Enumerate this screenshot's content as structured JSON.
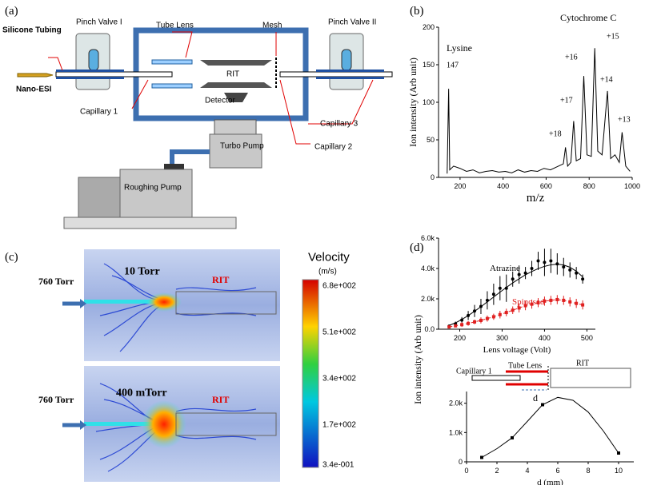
{
  "diagram_a": {
    "panel": "(a)",
    "labels": [
      "Silicone Tubing",
      "Nano-ESI",
      "Pinch Valve I",
      "Tube Lens",
      "Mesh",
      "Pinch Valve II",
      "RIT",
      "Detector",
      "Capillary 1",
      "Capillary 3",
      "Capillary 2",
      "Turbo Pump",
      "Roughing Pump"
    ]
  },
  "panel_b": {
    "panel": "(b)",
    "compound_labels": [
      "Lysine",
      "Cytochrome C"
    ],
    "peak_labels": [
      "147",
      "+18",
      "+17",
      "+16",
      "+15",
      "+14",
      "+13"
    ]
  },
  "panel_c": {
    "panel": "(c)",
    "pressure_in": [
      "760 Torr",
      "760 Torr"
    ],
    "pressure_chamber": [
      "10 Torr",
      "400 mTorr"
    ],
    "trap": [
      "RIT",
      "RIT"
    ],
    "colorbar_title": "Velocity",
    "colorbar_unit": "(m/s)",
    "colorbar_labels": [
      "6.8e+002",
      "5.1e+002",
      "3.4e+002",
      "1.7e+002",
      "3.4e-001"
    ]
  },
  "panel_d": {
    "panel": "(d)",
    "ylabel": "Ion intensity (Arb unit)",
    "inset_labels": [
      "Capillary 1",
      "Tube Lens",
      "RIT",
      "d"
    ]
  },
  "chart_data": [
    {
      "type": "line",
      "xlabel": "m/z",
      "ylabel": "Ion intensity (Arb unit)",
      "x": [
        140,
        147,
        152,
        170,
        200,
        230,
        260,
        290,
        320,
        350,
        380,
        410,
        440,
        470,
        500,
        530,
        560,
        590,
        620,
        650,
        680,
        690,
        700,
        715,
        728,
        740,
        760,
        775,
        790,
        810,
        826,
        840,
        860,
        885,
        900,
        920,
        940,
        953,
        970,
        990
      ],
      "values": [
        5,
        118,
        10,
        15,
        12,
        8,
        10,
        6,
        8,
        9,
        7,
        8,
        6,
        10,
        7,
        9,
        8,
        12,
        10,
        14,
        18,
        40,
        15,
        20,
        75,
        22,
        25,
        135,
        30,
        28,
        172,
        35,
        30,
        115,
        25,
        30,
        20,
        60,
        15,
        8
      ],
      "color": "#000000",
      "xlim": [
        100,
        1000
      ],
      "xticks": [
        200,
        400,
        600,
        800,
        1000
      ],
      "ylim": [
        0,
        200
      ],
      "yticks": [
        0,
        50,
        100,
        150,
        200
      ]
    },
    {
      "type": "scatter",
      "xlabel": "Lens voltage (Volt)",
      "xlim": [
        150,
        520
      ],
      "xticks": [
        200,
        300,
        400,
        500
      ],
      "ylim": [
        0,
        6000
      ],
      "yticks": [
        {
          "value": 0,
          "label": "0.0"
        },
        {
          "value": 2000,
          "label": "2.0k"
        },
        {
          "value": 4000,
          "label": "4.0k"
        },
        {
          "value": 6000,
          "label": "6.0k"
        }
      ],
      "x": [
        175,
        190,
        205,
        220,
        235,
        250,
        265,
        280,
        295,
        310,
        325,
        340,
        355,
        370,
        385,
        400,
        415,
        430,
        445,
        460,
        475,
        490
      ],
      "series": [
        {
          "name": "Atrazine",
          "color": "#000000",
          "marker": "circle",
          "values": [
            200,
            350,
            600,
            900,
            1200,
            1500,
            1900,
            2300,
            2700,
            2700,
            3300,
            3600,
            3700,
            4000,
            4500,
            4400,
            4500,
            4300,
            4100,
            3900,
            3700,
            3300
          ],
          "errors": [
            100,
            150,
            200,
            300,
            400,
            500,
            600,
            700,
            800,
            900,
            500,
            600,
            400,
            500,
            600,
            900,
            800,
            700,
            600,
            500,
            400,
            300
          ],
          "fit": [
            250,
            420,
            640,
            900,
            1180,
            1480,
            1800,
            2120,
            2440,
            2750,
            3050,
            3320,
            3580,
            3800,
            3990,
            4140,
            4240,
            4280,
            4230,
            4080,
            3820,
            3450
          ]
        },
        {
          "name": "Spinosad",
          "color": "#e02020",
          "marker": "square",
          "dashed": true,
          "values": [
            150,
            220,
            300,
            380,
            480,
            580,
            700,
            820,
            960,
            1100,
            1250,
            1400,
            1550,
            1650,
            1750,
            1850,
            1900,
            1950,
            1900,
            1800,
            1700,
            1600
          ],
          "errors": [
            100,
            100,
            150,
            150,
            150,
            200,
            200,
            200,
            250,
            250,
            250,
            300,
            300,
            300,
            300,
            300,
            300,
            300,
            300,
            300,
            300,
            300
          ]
        }
      ]
    },
    {
      "type": "scatter",
      "xlabel": "d (mm)",
      "xlim": [
        0,
        11
      ],
      "xticks": [
        0,
        2,
        4,
        6,
        8,
        10
      ],
      "ylim": [
        0,
        2400
      ],
      "yticks": [
        0,
        {
          "value": 1000,
          "label": "1.0k"
        },
        {
          "value": 2000,
          "label": "2.0k"
        }
      ],
      "x": [
        1,
        3,
        5,
        10
      ],
      "series": [
        {
          "color": "#000000",
          "marker": "square",
          "values": [
            150,
            820,
            1950,
            300
          ]
        }
      ],
      "fit_x": [
        1,
        2,
        3,
        4,
        5,
        6,
        7,
        8,
        9,
        10
      ],
      "fit_values": [
        150,
        450,
        820,
        1380,
        1950,
        2200,
        2100,
        1700,
        1050,
        300
      ]
    }
  ]
}
